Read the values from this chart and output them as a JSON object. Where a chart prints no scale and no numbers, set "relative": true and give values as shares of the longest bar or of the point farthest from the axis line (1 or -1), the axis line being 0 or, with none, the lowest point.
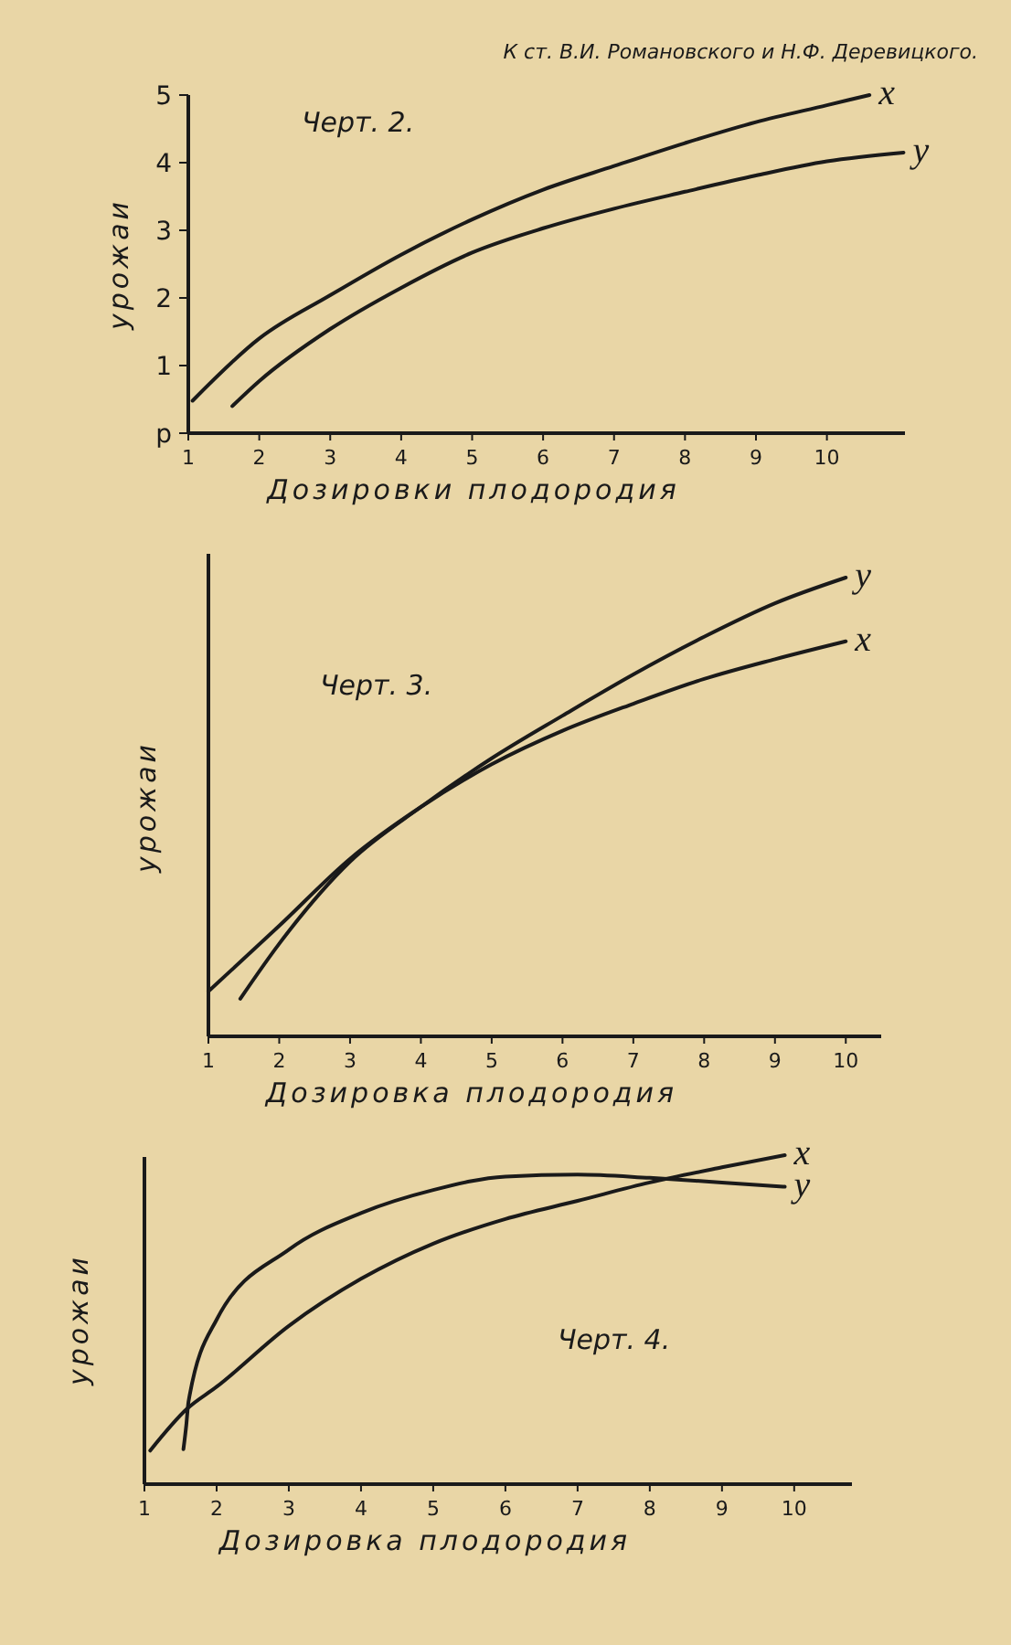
{
  "chart_data": [
    {
      "type": "line",
      "title": "Черт. 2.",
      "annotations": [
        "К ст. В.И. Романовского и Н.Ф. Деревицкого."
      ],
      "xlabel": "Дозировки плодородия",
      "ylabel": "урожаи",
      "xlim": [
        1,
        11.1
      ],
      "ylim": [
        0,
        5
      ],
      "xticks": [
        1,
        2,
        3,
        4,
        5,
        6,
        7,
        8,
        9,
        10
      ],
      "yticks": [
        {
          "value": 0,
          "label": "р"
        },
        1,
        2,
        3,
        4,
        5
      ],
      "grid": false,
      "marker": "none",
      "series": [
        {
          "name": "x",
          "color": "#1a1a1a",
          "x": [
            1.06,
            2,
            3,
            4,
            5,
            6,
            7,
            8,
            9,
            10,
            10.6
          ],
          "values": [
            0.48,
            1.4,
            2.04,
            2.64,
            3.16,
            3.6,
            3.95,
            4.29,
            4.6,
            4.85,
            5.0
          ]
        },
        {
          "name": "y",
          "color": "#1a1a1a",
          "x": [
            1.62,
            2,
            3,
            4,
            5,
            6,
            7,
            8,
            9,
            10,
            11.08
          ],
          "values": [
            0.4,
            0.77,
            1.54,
            2.15,
            2.67,
            3.03,
            3.32,
            3.57,
            3.81,
            4.02,
            4.15
          ]
        }
      ]
    },
    {
      "type": "line",
      "title": "Черт. 3.",
      "xlabel": "Дозировка плодородия",
      "ylabel": "урожаи",
      "relative": true,
      "xlim": [
        1,
        10.5
      ],
      "xticks": [
        1,
        2,
        3,
        4,
        5,
        6,
        7,
        8,
        9,
        10
      ],
      "grid": false,
      "marker": "none",
      "series": [
        {
          "name": "y",
          "color": "#1a1a1a",
          "x": [
            1.45,
            2,
            3,
            4,
            5,
            6,
            7,
            8,
            9,
            10
          ],
          "values": [
            0.082,
            0.202,
            0.381,
            0.5,
            0.606,
            0.699,
            0.789,
            0.871,
            0.944,
            1.0
          ]
        },
        {
          "name": "x",
          "color": "#1a1a1a",
          "x": [
            1,
            2,
            3,
            4,
            5,
            6,
            7,
            8,
            9,
            10
          ],
          "values": [
            0.098,
            0.241,
            0.387,
            0.5,
            0.593,
            0.666,
            0.725,
            0.779,
            0.822,
            0.861
          ]
        }
      ]
    },
    {
      "type": "line",
      "title": "Черт. 4.",
      "xlabel": "Дозировка плодородия",
      "ylabel": "урожаи",
      "relative": true,
      "xlim": [
        1,
        10.8
      ],
      "xticks": [
        1,
        2,
        3,
        4,
        5,
        6,
        7,
        8,
        9,
        10
      ],
      "grid": false,
      "marker": "none",
      "series": [
        {
          "name": "x",
          "color": "#1a1a1a",
          "x": [
            1.08,
            1.6,
            2,
            3,
            4,
            5,
            6,
            7,
            8,
            9,
            9.87
          ],
          "values": [
            0.102,
            0.231,
            0.296,
            0.481,
            0.624,
            0.731,
            0.806,
            0.861,
            0.917,
            0.963,
            1.0
          ]
        },
        {
          "name": "y",
          "color": "#1a1a1a",
          "x": [
            1.54,
            1.58,
            1.61,
            2,
            3,
            4,
            5,
            6,
            7,
            8,
            9,
            9.87
          ],
          "values": [
            0.106,
            0.18,
            0.25,
            0.5,
            0.713,
            0.824,
            0.894,
            0.935,
            0.941,
            0.931,
            0.917,
            0.904
          ]
        }
      ]
    }
  ]
}
